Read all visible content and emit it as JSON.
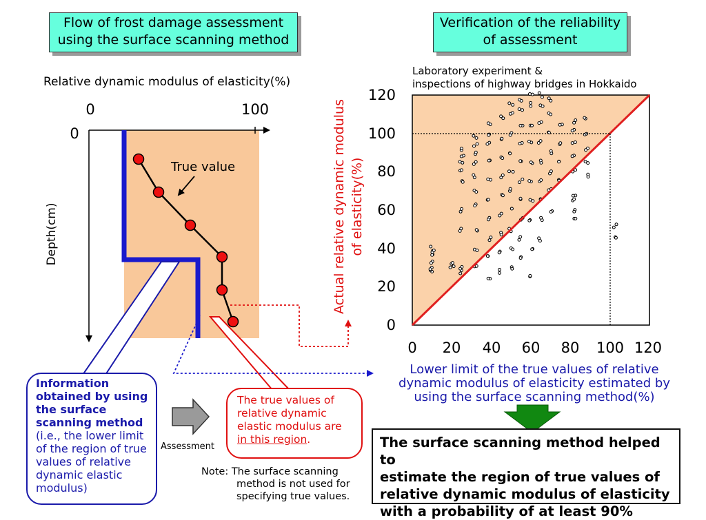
{
  "left_title": [
    "Flow of frost damage assessment",
    "using the surface scanning method"
  ],
  "right_title": [
    "Verification of the reliability",
    "of assessment"
  ],
  "left_diagram": {
    "top_axis_label": "Relative dynamic modulus of elasticity(%)",
    "tick_0": "0",
    "tick_100": "100",
    "depth_zero": "0",
    "depth_label": "Depth(cm)",
    "true_value_label": "True value",
    "true_values_pct": [
      32,
      45,
      65,
      84,
      85,
      89
    ],
    "lower_limit_pct": [
      20,
      20,
      72,
      72
    ],
    "colors": {
      "region": "#f9c89a",
      "true_point": "#ee1111",
      "lower_limit_line": "#1a1acc"
    }
  },
  "blue_callout": {
    "bold_lines": [
      "Information",
      "obtained by using",
      "the surface",
      "scanning method"
    ],
    "normal_lines": [
      "(i.e., the lower limit",
      "of the region of true",
      "values of relative",
      "dynamic elastic",
      "modulus)"
    ]
  },
  "assessment_label": "Assessment",
  "red_callout": {
    "lines": [
      "The true values of",
      "relative dynamic",
      "elastic modulus are"
    ],
    "underlined": "in this region",
    "suffix": "."
  },
  "note_lines": [
    "Note: The surface scanning",
    "method is not used for",
    "specifying true values."
  ],
  "scatter_chart": {
    "caption_lines": [
      "Laboratory experiment &",
      "inspections of highway bridges in Hokkaido"
    ],
    "ylabel_lines": [
      "Actual relative dynamic modulus",
      "of elasticity(%)"
    ],
    "xlabel_lines": [
      "Lower limit of the true values of relative",
      "dynamic modulus of elasticity estimated by",
      "using the surface scanning method(%)"
    ],
    "x_ticks": [
      "0",
      "20",
      "40",
      "60",
      "80",
      "100",
      "120"
    ],
    "y_ticks": [
      "0",
      "20",
      "40",
      "60",
      "80",
      "100",
      "120"
    ]
  },
  "conclusion_lines": [
    "The surface scanning method helped to",
    "estimate the region of true values of",
    "relative dynamic modulus of elasticity",
    "with a probability of at least 90%"
  ],
  "chart_data": {
    "type": "scatter",
    "title": "",
    "xlabel": "Lower limit of the true values of relative dynamic modulus of elasticity estimated by using the surface scanning method(%)",
    "ylabel": "Actual relative dynamic modulus of elasticity(%)",
    "xlim": [
      0,
      120
    ],
    "ylim": [
      0,
      120
    ],
    "reference_line": {
      "x": [
        0,
        120
      ],
      "y": [
        0,
        120
      ],
      "color": "#e02020"
    },
    "reference_guides": [
      {
        "y": 100,
        "x_to": 100
      },
      {
        "x": 100,
        "y_to": 100
      }
    ],
    "shaded_region": "above y = x",
    "clusters": [
      {
        "x": 10,
        "y": [
          28,
          30,
          33,
          36,
          38,
          40
        ]
      },
      {
        "x": 20,
        "y": [
          30,
          32
        ]
      },
      {
        "x": 25,
        "y": [
          28,
          30,
          50,
          60,
          75,
          80,
          85,
          88,
          92
        ]
      },
      {
        "x": 32,
        "y": [
          30,
          40,
          50,
          62,
          70,
          78,
          85,
          90,
          94,
          98
        ]
      },
      {
        "x": 39,
        "y": [
          25,
          35,
          45,
          55,
          65,
          75,
          85,
          95,
          100,
          105
        ]
      },
      {
        "x": 45,
        "y": [
          28,
          38,
          48,
          58,
          68,
          78,
          88,
          98,
          108
        ]
      },
      {
        "x": 50,
        "y": [
          30,
          40,
          50,
          60,
          70,
          80,
          90,
          100,
          110,
          115
        ]
      },
      {
        "x": 55,
        "y": [
          35,
          45,
          55,
          65,
          75,
          85,
          95,
          105,
          112,
          118
        ]
      },
      {
        "x": 60,
        "y": [
          25,
          40,
          55,
          65,
          75,
          85,
          95,
          105,
          115,
          120
        ]
      },
      {
        "x": 65,
        "y": [
          45,
          55,
          65,
          75,
          85,
          95,
          105,
          115,
          120
        ]
      },
      {
        "x": 70,
        "y": [
          60,
          70,
          80,
          90,
          100,
          110,
          118
        ]
      },
      {
        "x": 75,
        "y": [
          75,
          85,
          95,
          105
        ]
      },
      {
        "x": 82,
        "y": [
          55,
          60,
          65,
          68,
          80,
          88,
          95,
          102,
          106
        ]
      },
      {
        "x": 88,
        "y": [
          78,
          85,
          92,
          100,
          108
        ]
      },
      {
        "x": 103,
        "y": [
          45,
          52
        ]
      }
    ]
  }
}
